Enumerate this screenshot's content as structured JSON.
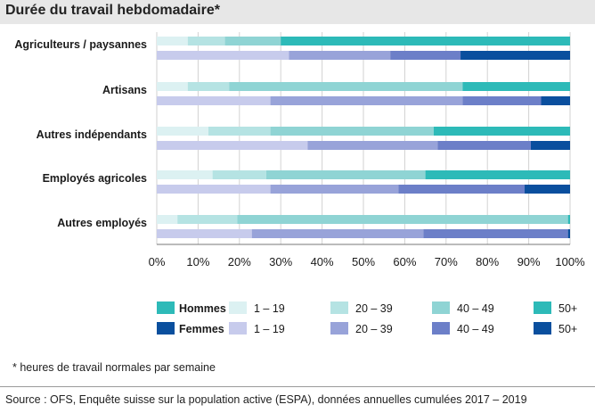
{
  "chart_data": {
    "type": "stacked-bar-horizontal",
    "title": "Durée du travail hebdomadaire*",
    "categories": [
      "Agriculteurs / paysannes",
      "Artisans",
      "Autres indépendants",
      "Employés agricoles",
      "Autres employés"
    ],
    "series_labels": [
      "1 – 19",
      "20 – 39",
      "40 – 49",
      "50+"
    ],
    "groups": [
      {
        "name": "Hommes",
        "colors": [
          "#dcf1f2",
          "#b5e3e3",
          "#8fd4d4",
          "#2dbab8"
        ],
        "values": [
          [
            7.5,
            9,
            13.5,
            70
          ],
          [
            7.5,
            10,
            56.5,
            26
          ],
          [
            12.5,
            15,
            39.5,
            33
          ],
          [
            13.5,
            13,
            38.5,
            35
          ],
          [
            5,
            14.5,
            80,
            0.5
          ]
        ]
      },
      {
        "name": "Femmes",
        "colors": [
          "#c7cbec",
          "#98a3d9",
          "#6c7fc8",
          "#0a4f9e"
        ],
        "values": [
          [
            32,
            24.5,
            17,
            26.5
          ],
          [
            27.5,
            46.5,
            19,
            7
          ],
          [
            36.5,
            31.5,
            22.5,
            9.5
          ],
          [
            27.5,
            31,
            30.5,
            11
          ],
          [
            23,
            41.5,
            35,
            0.5
          ]
        ]
      }
    ],
    "x_ticks": [
      "0%",
      "10%",
      "20%",
      "30%",
      "40%",
      "50%",
      "60%",
      "70%",
      "80%",
      "90%",
      "100%"
    ],
    "xlim": [
      0,
      100
    ]
  },
  "footnote": "* heures de travail normales par semaine",
  "source": "Source : OFS, Enquête suisse sur la population active (ESPA), données annuelles cumulées 2017 – 2019"
}
